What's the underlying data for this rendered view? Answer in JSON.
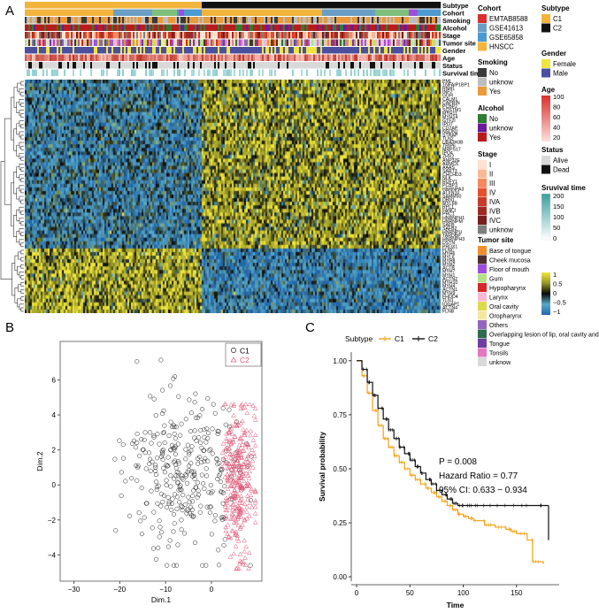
{
  "panels": {
    "a": "A",
    "b": "B",
    "c": "C"
  },
  "annotation_tracks": [
    "Subtype",
    "Cohort",
    "Smoking",
    "Alcohol",
    "Stage",
    "Tumor site",
    "Gender",
    "Age",
    "Status",
    "Survival time"
  ],
  "genes": [
    "PML",
    "TNFAIP1BP1",
    "RNH1",
    "INF2",
    "GGH",
    "CALM1",
    "CAPRIN",
    "PCBP2",
    "SQSTM1",
    "MYH11",
    "MYH14",
    "GTF2I",
    "IPO7",
    "CD2AP",
    "NSUN2",
    "STRAP",
    "TLN2",
    "UBA3H3B",
    "TRIP6",
    "MRPS17",
    "IPO4",
    "ZHX2",
    "ANP32E",
    "ARMC6",
    "AAAS",
    "SART3",
    "CHCHD3",
    "NLK",
    "RUFY1",
    "PCBP3",
    "HNRNPA3",
    "ATXN10",
    "SAMM50",
    "DBN1",
    "MYL6B",
    "RPL1",
    "FANCI",
    "PRC1",
    "HNRNPH1",
    "HNRNPM",
    "SAFB",
    "SAFB2",
    "HNRNPU",
    "TARDBP",
    "HNRNPH3",
    "DSTN",
    "PRDX1",
    "FLNC",
    "MYH6",
    "MYL6",
    "MYH8",
    "MYH2",
    "ACTB",
    "MYH7",
    "MYH1",
    "ACTN2",
    "MYH10",
    "MYH4",
    "ACTN1",
    "MYH9",
    "FHOD4",
    "TLN1",
    "IQGAP1",
    "ACTN4",
    "FLNB"
  ],
  "legends": {
    "subtype": {
      "title": "Subtype",
      "items": [
        {
          "label": "C1",
          "color": "#f2b43c"
        },
        {
          "label": "C2",
          "color": "#111111"
        }
      ]
    },
    "cohort": {
      "title": "Cohort",
      "items": [
        {
          "label": "EMTAB8588",
          "color": "#d7302f"
        },
        {
          "label": "GSE41613",
          "color": "#6a9ec5"
        },
        {
          "label": "GSE65858",
          "color": "#4d9ad0"
        },
        {
          "label": "HNSCC",
          "color": "#f2b43c"
        }
      ]
    },
    "smoking": {
      "title": "Smoking",
      "items": [
        {
          "label": "No",
          "color": "#3a3a3a"
        },
        {
          "label": "unknow",
          "color": "#bdbdbd"
        },
        {
          "label": "Yes",
          "color": "#e89a3c"
        }
      ]
    },
    "alcohol": {
      "title": "Alcohol",
      "items": [
        {
          "label": "No",
          "color": "#2e7d32"
        },
        {
          "label": "unknow",
          "color": "#6a1b9a"
        },
        {
          "label": "Yes",
          "color": "#b71c1c"
        }
      ]
    },
    "stage": {
      "title": "Stage",
      "items": [
        {
          "label": "I",
          "color": "#fde0cf"
        },
        {
          "label": "II",
          "color": "#f9b996"
        },
        {
          "label": "III",
          "color": "#f4895f"
        },
        {
          "label": "IV",
          "color": "#e4502e"
        },
        {
          "label": "IVA",
          "color": "#c83a2a"
        },
        {
          "label": "IVB",
          "color": "#9e2a24"
        },
        {
          "label": "IVC",
          "color": "#7a1d1d"
        },
        {
          "label": "unknow",
          "color": "#7f7f7f"
        }
      ]
    },
    "tumor_site": {
      "title": "Tumor site",
      "items": [
        {
          "label": "Base of tongue",
          "color": "#f28e2b"
        },
        {
          "label": "Cheek mucosa",
          "color": "#4e2f2f"
        },
        {
          "label": "Floor of mouth",
          "color": "#9d4edd"
        },
        {
          "label": "Gum",
          "color": "#b5e08a"
        },
        {
          "label": "Hypopharynx",
          "color": "#d62728"
        },
        {
          "label": "Larynx",
          "color": "#f7b6d2"
        },
        {
          "label": "Oral cavity",
          "color": "#dbdb4d"
        },
        {
          "label": "Oropharynx",
          "color": "#f5e6a3"
        },
        {
          "label": "Others",
          "color": "#9467bd"
        },
        {
          "label": "Overlapping lesion of lip, oral cavity and pharynx",
          "color": "#2f6b4f"
        },
        {
          "label": "Tongue",
          "color": "#6b3fa0"
        },
        {
          "label": "Tonsils",
          "color": "#e377c2"
        },
        {
          "label": "unknow",
          "color": "#d9d9d9"
        }
      ]
    },
    "gender": {
      "title": "Gender",
      "items": [
        {
          "label": "Female",
          "color": "#f0e442"
        },
        {
          "label": "Male",
          "color": "#4b4f9e"
        }
      ]
    },
    "age": {
      "title": "Age",
      "ticks": [
        "100",
        "80",
        "60",
        "40",
        "20"
      ]
    },
    "status": {
      "title": "Status",
      "items": [
        {
          "label": "Alive",
          "color": "#d9d9d9"
        },
        {
          "label": "Dead",
          "color": "#111111"
        }
      ]
    },
    "survival_time": {
      "title": "Sruvival time",
      "ticks": [
        "200",
        "150",
        "100",
        "50",
        "0"
      ]
    },
    "expression": {
      "ticks": [
        "1",
        "0.5",
        "0",
        "−0.5",
        "−1"
      ]
    }
  },
  "pca": {
    "xlabel": "Dim.1",
    "ylabel": "Dim.2",
    "xticks": [
      "−30",
      "−20",
      "−10",
      "0"
    ],
    "xtick_values": [
      -30,
      -20,
      -10,
      0
    ],
    "yticks": [
      "6",
      "4",
      "2",
      "0",
      "−2",
      "−4"
    ],
    "ytick_values": [
      6,
      4,
      2,
      0,
      -2,
      -4
    ],
    "xlim": [
      -33,
      11
    ],
    "ylim": [
      -5.5,
      8.2
    ],
    "legend": [
      {
        "label": "C1",
        "color": "#222222",
        "shape": "circle"
      },
      {
        "label": "C2",
        "color": "#e05a7a",
        "shape": "triangle"
      }
    ]
  },
  "km": {
    "legend_title": "Subtype",
    "legend": [
      {
        "label": "C1",
        "color": "#f2a41a"
      },
      {
        "label": "C2",
        "color": "#111111"
      }
    ],
    "xlabel": "Time",
    "ylabel": "Survival probability",
    "xticks": [
      "0",
      "50",
      "100",
      "150"
    ],
    "xtick_values": [
      0,
      50,
      100,
      150
    ],
    "yticks": [
      "1.00",
      "0.75",
      "0.50",
      "0.25",
      "0.00"
    ],
    "ytick_values": [
      1,
      0.75,
      0.5,
      0.25,
      0
    ],
    "xlim": [
      -5,
      190
    ],
    "ylim": [
      -0.02,
      1.04
    ],
    "p_value": "P = 0.008",
    "hazard_ratio": "Hazard Ratio = 0.77",
    "ci": "95% CI: 0.633 − 0.934"
  },
  "chart_data": [
    {
      "type": "heatmap",
      "title": "",
      "rows": "genes",
      "value_range": [
        -1,
        1
      ],
      "clusters": [
        "C1",
        "C2"
      ]
    },
    {
      "type": "scatter",
      "xlabel": "Dim.1",
      "ylabel": "Dim.2",
      "xlim": [
        -33,
        11
      ],
      "ylim": [
        -5.5,
        8.2
      ],
      "series": [
        {
          "name": "C1",
          "centroid": [
            -6,
            0.5
          ],
          "spread": [
            8,
            2.2
          ],
          "approx_count": 320
        },
        {
          "name": "C2",
          "centroid": [
            6,
            0.2
          ],
          "spread": [
            2,
            2.2
          ],
          "approx_count": 330
        }
      ]
    },
    {
      "type": "line",
      "xlabel": "Time",
      "ylabel": "Survival probability",
      "series": [
        {
          "name": "C1",
          "x": [
            0,
            5,
            10,
            15,
            20,
            25,
            30,
            35,
            40,
            45,
            50,
            55,
            60,
            65,
            70,
            75,
            80,
            85,
            90,
            95,
            100,
            105,
            110,
            120,
            130,
            140,
            145,
            150,
            160,
            165,
            175
          ],
          "y": [
            1.0,
            0.93,
            0.85,
            0.77,
            0.7,
            0.64,
            0.6,
            0.56,
            0.53,
            0.5,
            0.47,
            0.45,
            0.43,
            0.41,
            0.39,
            0.37,
            0.35,
            0.33,
            0.31,
            0.29,
            0.28,
            0.27,
            0.26,
            0.24,
            0.23,
            0.22,
            0.21,
            0.2,
            0.17,
            0.07,
            0.06
          ]
        },
        {
          "name": "C2",
          "x": [
            0,
            5,
            10,
            15,
            20,
            25,
            30,
            35,
            40,
            45,
            50,
            55,
            60,
            65,
            70,
            75,
            80,
            85,
            90,
            95,
            100,
            110,
            120,
            140,
            160,
            180
          ],
          "y": [
            1.0,
            0.96,
            0.9,
            0.84,
            0.78,
            0.73,
            0.68,
            0.64,
            0.6,
            0.57,
            0.54,
            0.51,
            0.48,
            0.45,
            0.43,
            0.4,
            0.38,
            0.36,
            0.34,
            0.33,
            0.33,
            0.33,
            0.33,
            0.33,
            0.33,
            0.33
          ]
        }
      ]
    }
  ]
}
